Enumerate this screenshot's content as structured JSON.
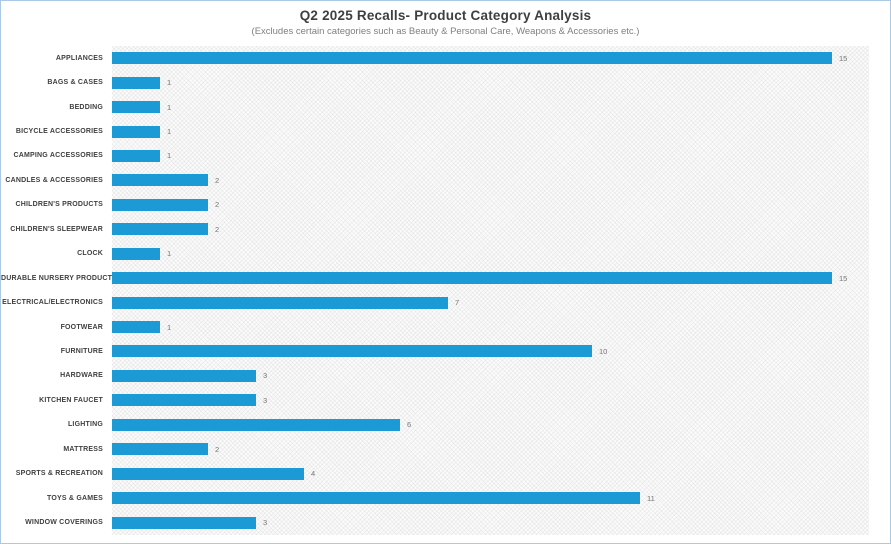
{
  "window": {
    "border_color": "#aac9e4"
  },
  "chart_data": {
    "type": "bar",
    "orientation": "horizontal",
    "title": "Q2 2025 Recalls- Product Category Analysis",
    "subtitle": "(Excludes certain categories such as Beauty & Personal Care, Weapons & Accessories etc.)",
    "categories": [
      "APPLIANCES",
      "BAGS & CASES",
      "BEDDING",
      "BICYCLE ACCESSORIES",
      "CAMPING ACCESSORIES",
      "CANDLES & ACCESSORIES",
      "CHILDREN'S PRODUCTS",
      "CHILDREN'S SLEEPWEAR",
      "CLOCK",
      "DURABLE NURSERY PRODUCT",
      "ELECTRICAL/ELECTRONICS",
      "FOOTWEAR",
      "FURNITURE",
      "HARDWARE",
      "KITCHEN FAUCET",
      "LIGHTING",
      "MATTRESS",
      "SPORTS & RECREATION",
      "TOYS & GAMES",
      "WINDOW COVERINGS"
    ],
    "values": [
      15,
      1,
      1,
      1,
      1,
      2,
      2,
      2,
      1,
      15,
      7,
      1,
      10,
      3,
      3,
      6,
      2,
      4,
      11,
      3
    ],
    "xlim": [
      0,
      15.75
    ],
    "grid": false,
    "legend": false,
    "data_labels": true,
    "bar_color": "#1b9ad6",
    "category_label_color": "#3f3f3f",
    "value_label_color": "#757575",
    "plot_background": "diagonal-crosshatch"
  }
}
